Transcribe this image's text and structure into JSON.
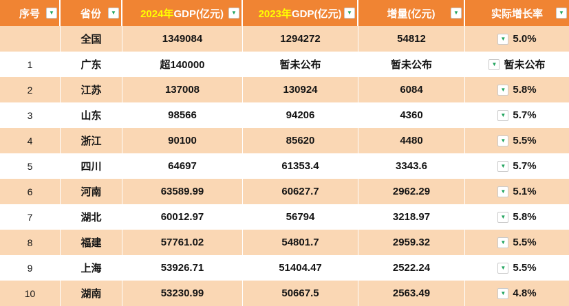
{
  "colors": {
    "header_bg": "#F08433",
    "header_text": "#FFFFFF",
    "header_accent": "#FFFF00",
    "band_row_bg": "#FAD7B4",
    "plain_row_bg": "#FFFFFF",
    "dropdown_arrow": "#1FA35C"
  },
  "icons": {
    "dropdown_arrow": "▼"
  },
  "table": {
    "columns": [
      {
        "id": "index",
        "label_accent": "",
        "label_main": "序号"
      },
      {
        "id": "province",
        "label_accent": "",
        "label_main": "省份"
      },
      {
        "id": "gdp2024",
        "label_accent": "2024年",
        "label_main": "GDP(亿元)"
      },
      {
        "id": "gdp2023",
        "label_accent": "2023年",
        "label_main": "GDP(亿元)"
      },
      {
        "id": "delta",
        "label_accent": "",
        "label_main": "增量(亿元)"
      },
      {
        "id": "rate",
        "label_accent": "",
        "label_main": "实际增长率"
      }
    ],
    "rows": [
      {
        "index": "",
        "province": "全国",
        "gdp2024": "1349084",
        "gdp2023": "1294272",
        "delta": "54812",
        "rate": "5.0%"
      },
      {
        "index": "1",
        "province": "广东",
        "gdp2024": "超140000",
        "gdp2023": "暂未公布",
        "delta": "暂未公布",
        "rate": "暂未公布"
      },
      {
        "index": "2",
        "province": "江苏",
        "gdp2024": "137008",
        "gdp2023": "130924",
        "delta": "6084",
        "rate": "5.8%"
      },
      {
        "index": "3",
        "province": "山东",
        "gdp2024": "98566",
        "gdp2023": "94206",
        "delta": "4360",
        "rate": "5.7%"
      },
      {
        "index": "4",
        "province": "浙江",
        "gdp2024": "90100",
        "gdp2023": "85620",
        "delta": "4480",
        "rate": "5.5%"
      },
      {
        "index": "5",
        "province": "四川",
        "gdp2024": "64697",
        "gdp2023": "61353.4",
        "delta": "3343.6",
        "rate": "5.7%"
      },
      {
        "index": "6",
        "province": "河南",
        "gdp2024": "63589.99",
        "gdp2023": "60627.7",
        "delta": "2962.29",
        "rate": "5.1%"
      },
      {
        "index": "7",
        "province": "湖北",
        "gdp2024": "60012.97",
        "gdp2023": "56794",
        "delta": "3218.97",
        "rate": "5.8%"
      },
      {
        "index": "8",
        "province": "福建",
        "gdp2024": "57761.02",
        "gdp2023": "54801.7",
        "delta": "2959.32",
        "rate": "5.5%"
      },
      {
        "index": "9",
        "province": "上海",
        "gdp2024": "53926.71",
        "gdp2023": "51404.47",
        "delta": "2522.24",
        "rate": "5.5%"
      },
      {
        "index": "10",
        "province": "湖南",
        "gdp2024": "53230.99",
        "gdp2023": "50667.5",
        "delta": "2563.49",
        "rate": "4.8%"
      }
    ]
  }
}
